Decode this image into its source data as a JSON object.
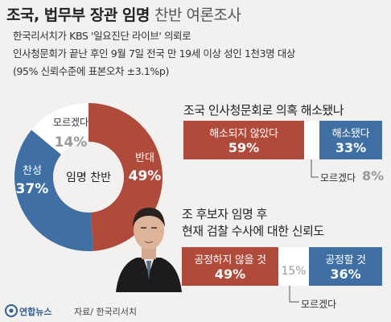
{
  "header": {
    "title_main": "조국, 법무부 장관 임명",
    "title_sub": "찬반 여론조사",
    "desc_lines": [
      "한국리서치가 KBS '일요진단 라이브' 의뢰로",
      "인사청문회가 끝난 후인 9월 7일 전국 만 19세 이상 성인 1천3명 대상",
      "(95% 신뢰수준에 표본오차 ±3.1%p)"
    ]
  },
  "footer": {
    "logo": "연합뉴스",
    "source": "자료/ 한국리서치"
  },
  "colors": {
    "red": "#b04a3a",
    "blue": "#3f6fa3",
    "gray": "#f2f1ef"
  },
  "chart_data": [
    {
      "type": "pie",
      "title": "임명 찬반",
      "slices": [
        {
          "label": "반대",
          "value": 49,
          "display": "49%",
          "color": "#b04a3a"
        },
        {
          "label": "찬성",
          "value": 37,
          "display": "37%",
          "color": "#3f6fa3"
        },
        {
          "label": "모르겠다",
          "value": 14,
          "display": "14%",
          "color": "#ffffff"
        }
      ]
    },
    {
      "type": "bar",
      "orientation": "stacked-horizontal",
      "title": "조국 인사청문회로 의혹 해소됐나",
      "series": [
        {
          "name": "해소되지 않았다",
          "value": 59,
          "display": "59%",
          "color": "#b04a3a"
        },
        {
          "name": "모르겠다",
          "value": 8,
          "display": "8%",
          "color": "#ffffff"
        },
        {
          "name": "해소됐다",
          "value": 33,
          "display": "33%",
          "color": "#3f6fa3"
        }
      ]
    },
    {
      "type": "bar",
      "orientation": "stacked-horizontal",
      "title_lines": [
        "조 후보자 임명 후",
        "현재 검찰 수사에 대한 신뢰도"
      ],
      "series": [
        {
          "name": "공정하지 않을 것",
          "value": 49,
          "display": "49%",
          "color": "#b04a3a"
        },
        {
          "name": "모르겠다",
          "value": 15,
          "display": "15%",
          "color": "#ffffff"
        },
        {
          "name": "공정할 것",
          "value": 36,
          "display": "36%",
          "color": "#3f6fa3"
        }
      ]
    }
  ]
}
